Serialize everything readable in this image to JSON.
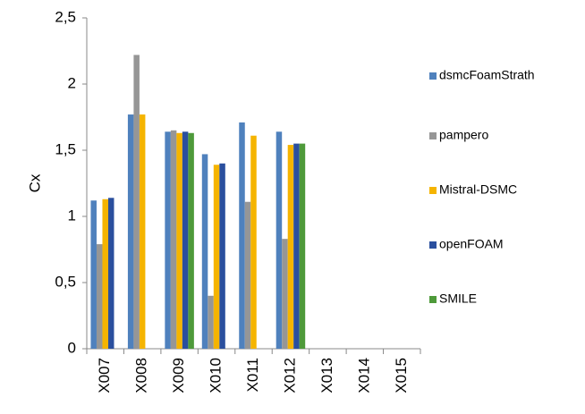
{
  "chart_data": {
    "type": "bar",
    "y_label": "Cx",
    "categories": [
      "X007",
      "X008",
      "X009",
      "X010",
      "X011",
      "X012",
      "X013",
      "X014",
      "X015"
    ],
    "series": [
      {
        "name": "dsmcFoamStrath",
        "color": "#4f81bd",
        "values": [
          1.12,
          1.77,
          1.64,
          1.47,
          1.71,
          1.64,
          null,
          null,
          null
        ]
      },
      {
        "name": "pampero",
        "color": "#969696",
        "values": [
          0.79,
          2.22,
          1.65,
          0.4,
          1.11,
          0.83,
          null,
          null,
          null
        ]
      },
      {
        "name": "Mistral-DSMC",
        "color": "#f5b400",
        "values": [
          1.13,
          1.77,
          1.63,
          1.39,
          1.61,
          1.54,
          null,
          null,
          null
        ]
      },
      {
        "name": "openFOAM",
        "color": "#2a4f9e",
        "values": [
          1.14,
          null,
          1.64,
          1.4,
          null,
          1.55,
          null,
          null,
          null
        ]
      },
      {
        "name": "SMILE",
        "color": "#4e9a3a",
        "values": [
          null,
          null,
          1.63,
          null,
          null,
          1.55,
          null,
          null,
          null
        ]
      }
    ],
    "ylim": [
      0,
      2.5
    ],
    "yticks": [
      0,
      {
        "value": 0.5,
        "label": "0,5"
      },
      1,
      {
        "value": 1.5,
        "label": "1,5"
      },
      2,
      {
        "value": 2.5,
        "label": "2,5"
      }
    ],
    "legend": "right"
  }
}
